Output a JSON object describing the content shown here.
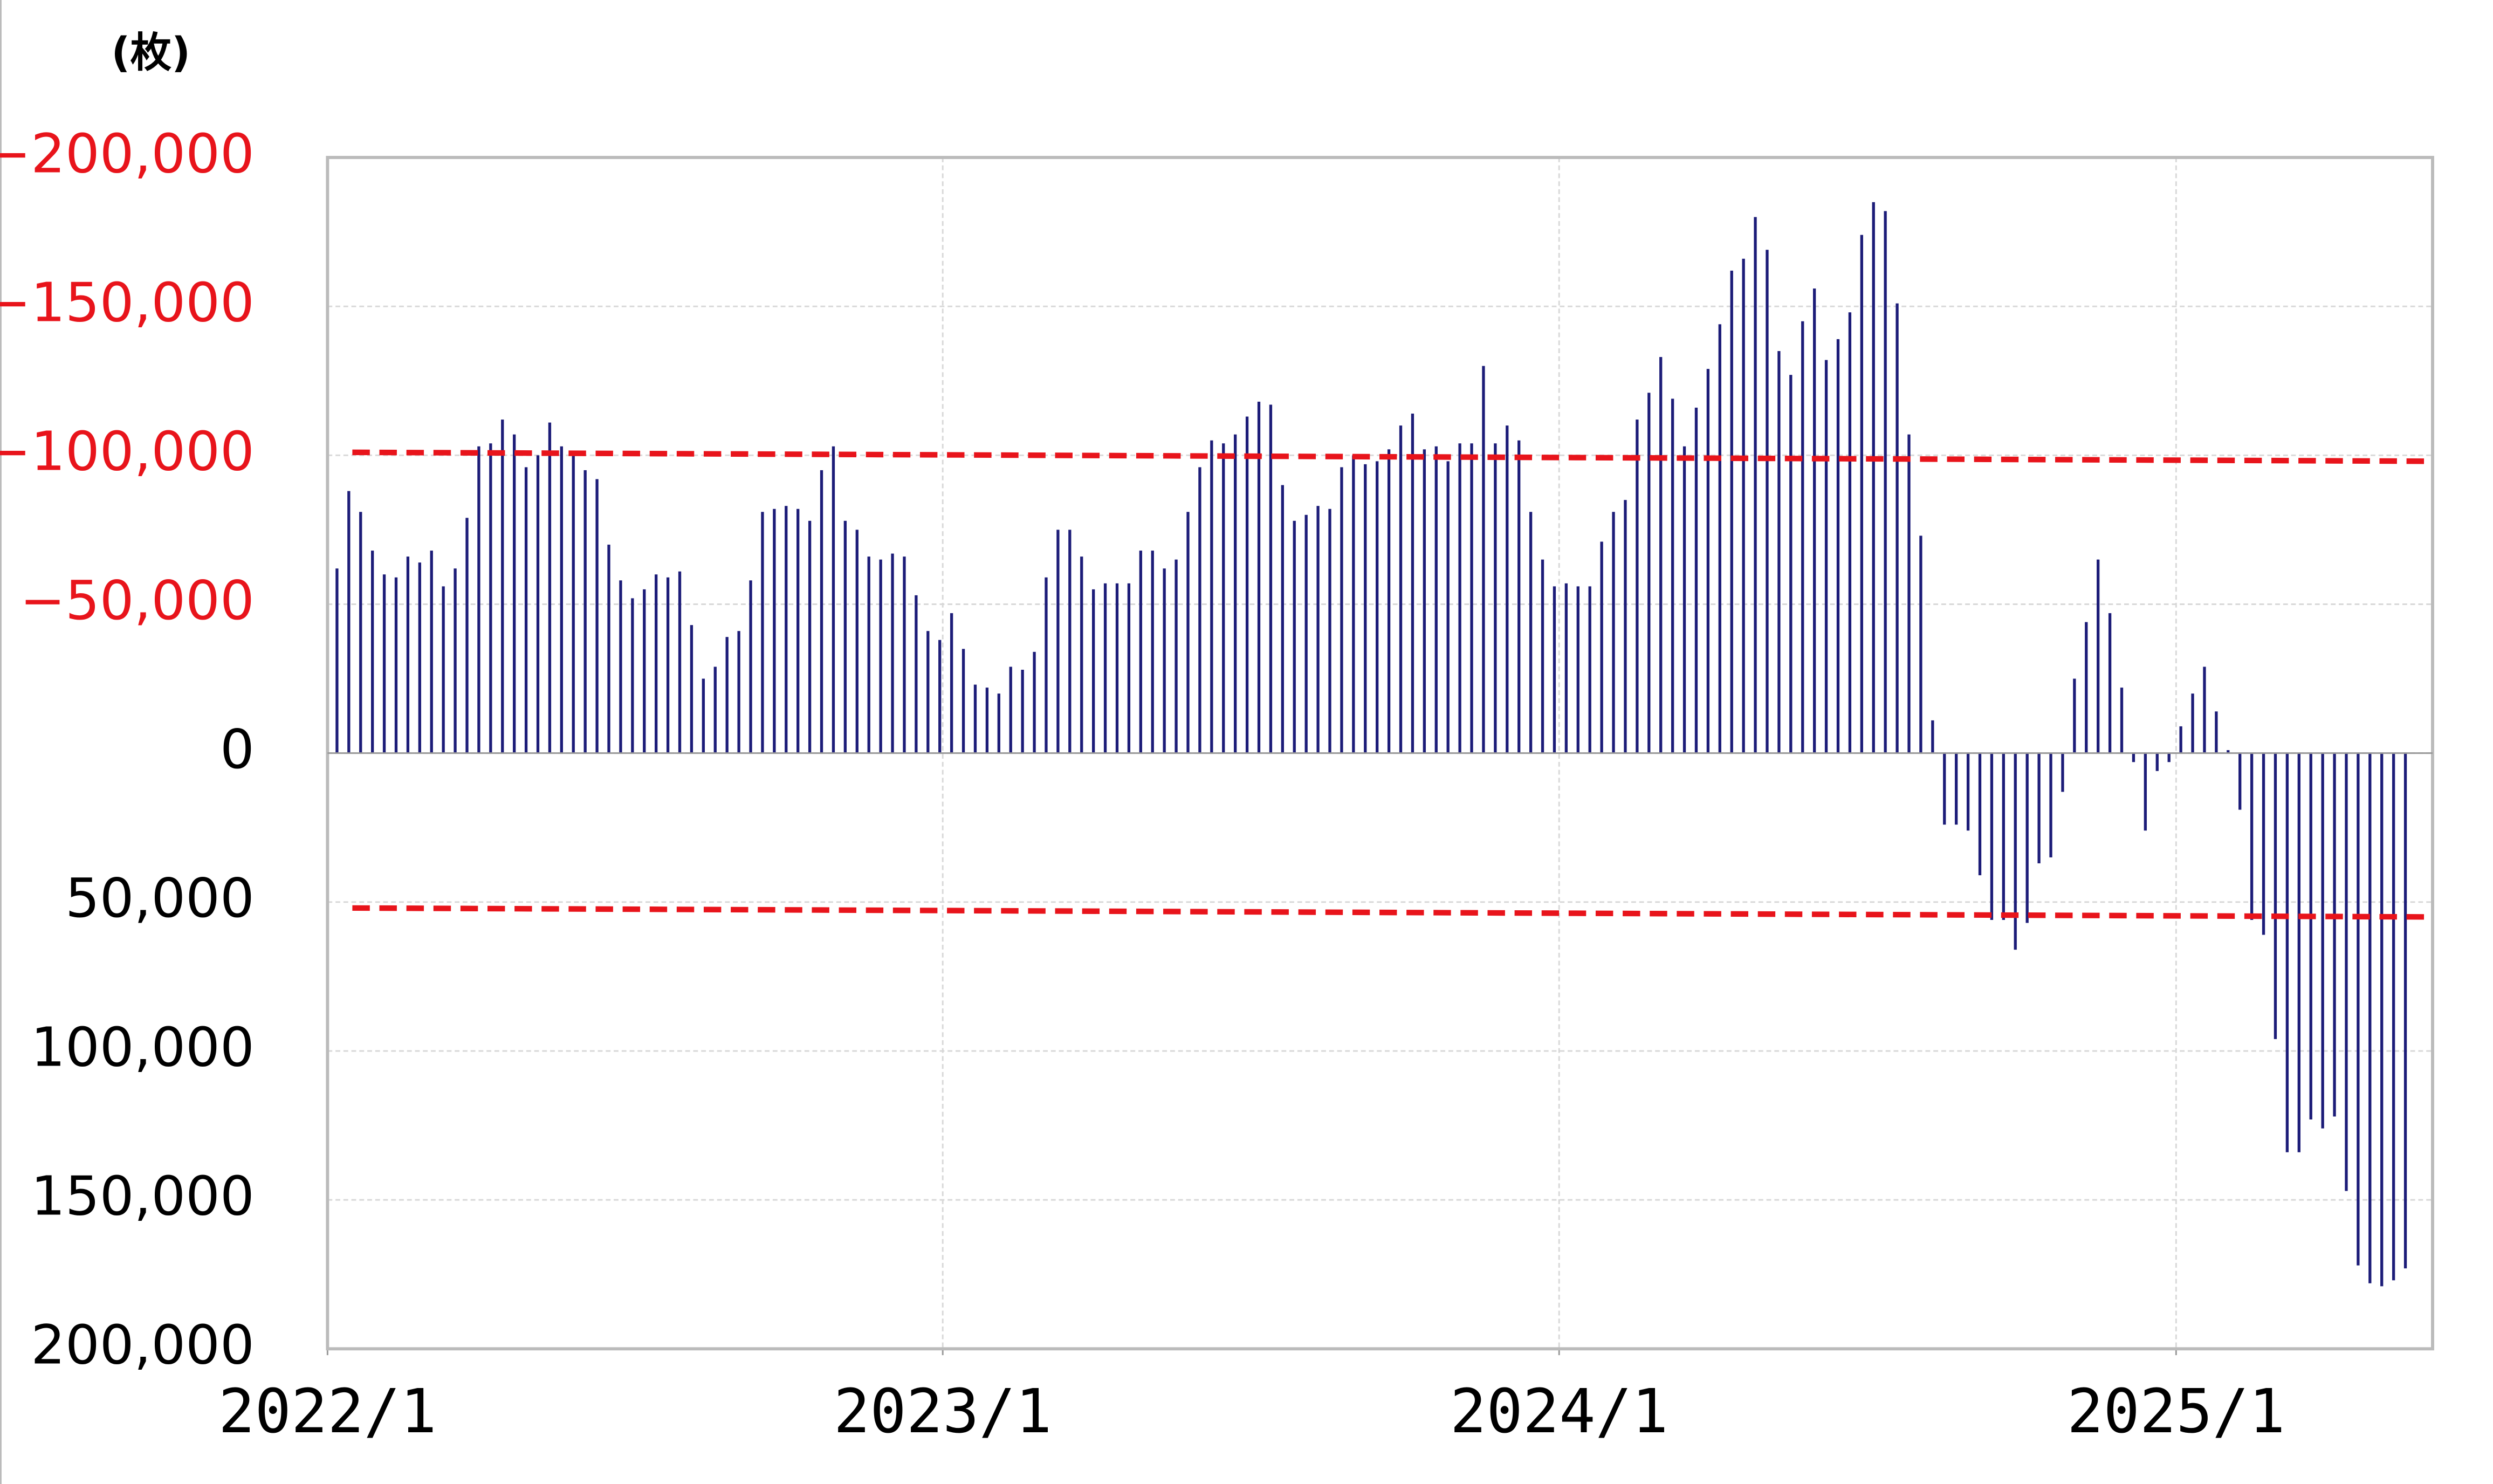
{
  "chart_data": {
    "type": "bar",
    "y_axis_label": "(枚)",
    "x": [
      1,
      2,
      3,
      4,
      5,
      6,
      7,
      8,
      9,
      10,
      11,
      12,
      13,
      14,
      15,
      16,
      17,
      18,
      19,
      20,
      21,
      22,
      23,
      24,
      25,
      26,
      27,
      28,
      29,
      30,
      31,
      32,
      33,
      34,
      35,
      36,
      37,
      38,
      39,
      40,
      41,
      42,
      43,
      44,
      45,
      46,
      47,
      48,
      49,
      50,
      51,
      52,
      53,
      54,
      55,
      56,
      57,
      58,
      59,
      60,
      61,
      62,
      63,
      64,
      65,
      66,
      67,
      68,
      69,
      70,
      71,
      72,
      73,
      74,
      75,
      76,
      77,
      78,
      79,
      80,
      81,
      82,
      83,
      84,
      85,
      86,
      87,
      88,
      89,
      90,
      91,
      92,
      93,
      94,
      95,
      96,
      97,
      98,
      99,
      100,
      101,
      102,
      103,
      104,
      105,
      106,
      107,
      108,
      109,
      110,
      111,
      112,
      113,
      114,
      115,
      116,
      117,
      118,
      119,
      120,
      121,
      122,
      123,
      124,
      125,
      126,
      127,
      128,
      129,
      130,
      131,
      132,
      133,
      134,
      135,
      136,
      137,
      138,
      139,
      140,
      141,
      142,
      143,
      144,
      145,
      146,
      147,
      148,
      149,
      150,
      151,
      152,
      153,
      154,
      155,
      156,
      157,
      158,
      159,
      160,
      161,
      162,
      163,
      164,
      165,
      166,
      167,
      168,
      169,
      170,
      171,
      172,
      173,
      174,
      175,
      176
    ],
    "values": [
      -62000,
      -88000,
      -81000,
      -68000,
      -60000,
      -59000,
      -66000,
      -64000,
      -68000,
      -56000,
      -62000,
      -79000,
      -103000,
      -104000,
      -112000,
      -107000,
      -96000,
      -100000,
      -111000,
      -103000,
      -100000,
      -95000,
      -92000,
      -70000,
      -58000,
      -52000,
      -55000,
      -60000,
      -59000,
      -61000,
      -43000,
      -25000,
      -29000,
      -39000,
      -41000,
      -58000,
      -81000,
      -82000,
      -83000,
      -82000,
      -78000,
      -95000,
      -103000,
      -78000,
      -75000,
      -66000,
      -65000,
      -67000,
      -66000,
      -53000,
      -41000,
      -38000,
      -47000,
      -35000,
      -23000,
      -22000,
      -20000,
      -29000,
      -28000,
      -34000,
      -59000,
      -75000,
      -75000,
      -66000,
      -55000,
      -57000,
      -57000,
      -57000,
      -68000,
      -68000,
      -62000,
      -65000,
      -81000,
      -96000,
      -105000,
      -104000,
      -107000,
      -113000,
      -118000,
      -117000,
      -90000,
      -78000,
      -80000,
      -83000,
      -82000,
      -96000,
      -100000,
      -97000,
      -98000,
      -102000,
      -110000,
      -114000,
      -102000,
      -103000,
      -98000,
      -104000,
      -104000,
      -130000,
      -104000,
      -110000,
      -105000,
      -81000,
      -65000,
      -56000,
      -57000,
      -56000,
      -56000,
      -71000,
      -81000,
      -85000,
      -112000,
      -121000,
      -133000,
      -119000,
      -103000,
      -116000,
      -129000,
      -144000,
      -162000,
      -166000,
      -180000,
      -169000,
      -135000,
      -127000,
      -145000,
      -156000,
      -132000,
      -139000,
      -148000,
      -174000,
      -185000,
      -182000,
      -151000,
      -107000,
      -73000,
      -11000,
      24000,
      24000,
      26000,
      41000,
      56000,
      56000,
      66000,
      57000,
      37000,
      35000,
      13000,
      -25000,
      -44000,
      -65000,
      -47000,
      -22000,
      3000,
      26000,
      6000,
      3000,
      -9000,
      -20000,
      -29000,
      -14000,
      -1000,
      19000,
      56000,
      61000,
      96000,
      134000,
      134000,
      123000,
      126000,
      122000,
      147000,
      172000,
      178000,
      179000,
      177000,
      173000
    ],
    "color": "#1c1c78",
    "xlim": [
      0.2,
      178.3
    ],
    "xticks": [
      {
        "value": 0.2,
        "label": "2022/1"
      },
      {
        "value": 52.25,
        "label": "2023/1"
      },
      {
        "value": 104.4,
        "label": "2024/1"
      },
      {
        "value": 156.6,
        "label": "2025/1"
      }
    ],
    "ylim": [
      -200000,
      200000
    ],
    "y_inverted": true,
    "yticks": [
      {
        "value": -200000,
        "label": "−200,000"
      },
      {
        "value": -150000,
        "label": "−150,000"
      },
      {
        "value": -100000,
        "label": "−100,000"
      },
      {
        "value": -50000,
        "label": "−50,000"
      },
      0,
      {
        "value": 50000,
        "label": "50,000"
      },
      {
        "value": 100000,
        "label": "100,000"
      },
      {
        "value": 150000,
        "label": "150,000"
      },
      {
        "value": 200000,
        "label": "200,000"
      }
    ],
    "negative_tick_color": "#e8141b",
    "tick_color": "#000000",
    "grid": true,
    "reference_lines": [
      {
        "x": [
          2.3,
          178.3
        ],
        "y": [
          -101000,
          -98000
        ],
        "color": "#e8141b"
      },
      {
        "x": [
          2.3,
          178.3
        ],
        "y": [
          52000,
          55000
        ],
        "color": "#e8141b"
      }
    ]
  }
}
